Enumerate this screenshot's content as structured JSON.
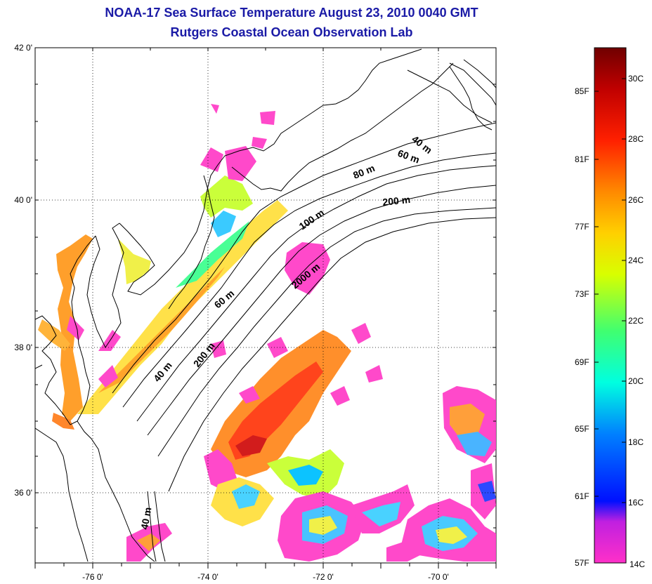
{
  "title": {
    "line1": "NOAA-17 Sea Surface Temperature August 23, 2010 0040 GMT",
    "line2": "Rutgers Coastal Ocean Observation Lab"
  },
  "axes": {
    "lat_labels": [
      "42 0'",
      "40 0'",
      "38 0'",
      "36 0'"
    ],
    "lon_labels": [
      "-76 0'",
      "-74 0'",
      "-72 0'",
      "-70 0'"
    ]
  },
  "contours": {
    "labels": [
      "40 m",
      "60 m",
      "80 m",
      "200 m",
      "100 m",
      "2000 m",
      "60 m",
      "200 m",
      "40 m",
      "40 m"
    ]
  },
  "colorbar": {
    "fahrenheit": [
      "85F",
      "81F",
      "77F",
      "73F",
      "69F",
      "65F",
      "61F",
      "57F"
    ],
    "celsius": [
      "30C",
      "28C",
      "26C",
      "24C",
      "22C",
      "20C",
      "18C",
      "16C",
      "14C"
    ],
    "colors": [
      "#7a0000",
      "#c00000",
      "#ff1a00",
      "#ff7a00",
      "#ffd000",
      "#c8ff00",
      "#40ff60",
      "#00ffe0",
      "#00a0ff",
      "#0010ff",
      "#8a20c0",
      "#ff20c0"
    ]
  }
}
